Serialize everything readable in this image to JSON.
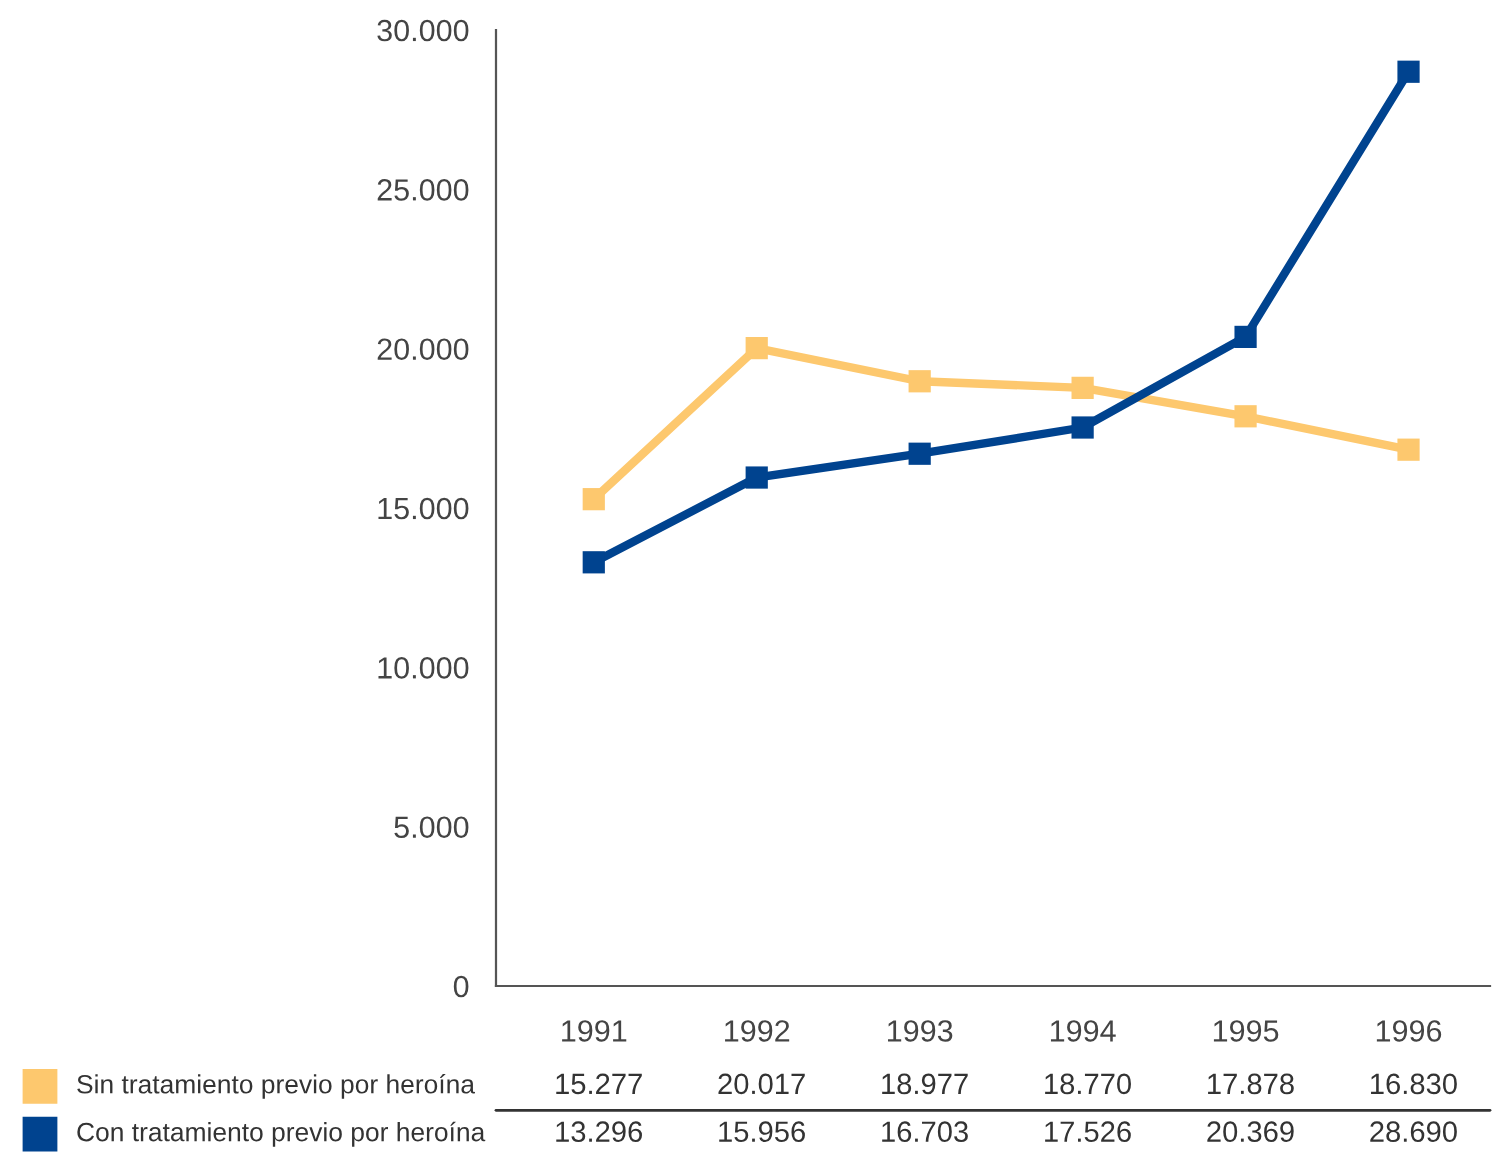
{
  "chart_data": {
    "type": "line",
    "categories": [
      "1991",
      "1992",
      "1993",
      "1994",
      "1995",
      "1996"
    ],
    "series": [
      {
        "name": "Sin tratamiento previo por heroína",
        "color": "#fdc86e",
        "values": [
          15277,
          20017,
          18977,
          18770,
          17878,
          16830
        ],
        "value_labels": [
          "15.277",
          "20.017",
          "18.977",
          "18.770",
          "17.878",
          "16.830"
        ]
      },
      {
        "name": "Con tratamiento previo por heroína",
        "color": "#00438f",
        "values": [
          13296,
          15956,
          16703,
          17526,
          20369,
          28690
        ],
        "value_labels": [
          "13.296",
          "15.956",
          "16.703",
          "17.526",
          "20.369",
          "28.690"
        ]
      }
    ],
    "ylim": [
      0,
      30000
    ],
    "yticks": [
      0,
      {
        "value": 5000,
        "label": "5.000"
      },
      {
        "value": 10000,
        "label": "10.000"
      },
      {
        "value": 15000,
        "label": "15.000"
      },
      {
        "value": 20000,
        "label": "20.000"
      },
      {
        "value": 25000,
        "label": "25.000"
      },
      {
        "value": 30000,
        "label": "30.000"
      }
    ],
    "marker": "square",
    "line_style": "solid",
    "grid": false,
    "legend": "bottom"
  }
}
